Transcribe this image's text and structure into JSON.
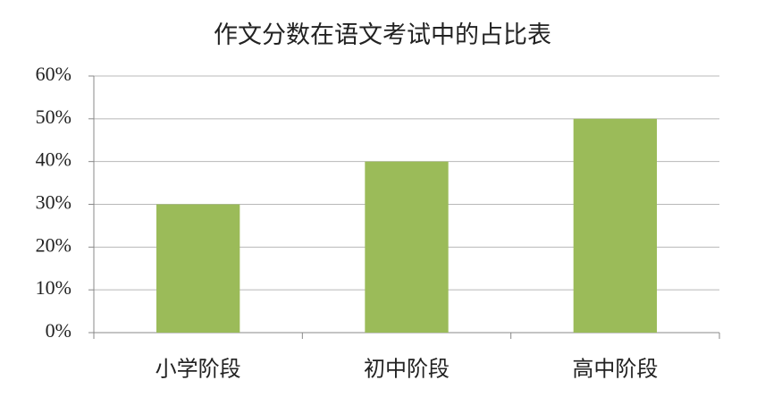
{
  "chart_data": {
    "type": "bar",
    "title": "作文分数在语文考试中的占比表",
    "categories": [
      "小学阶段",
      "初中阶段",
      "高中阶段"
    ],
    "values": [
      30,
      40,
      50
    ],
    "color": "#9bbb59",
    "ylim": [
      0,
      60
    ],
    "yticks": [
      {
        "value": 0,
        "label": "0%"
      },
      {
        "value": 10,
        "label": "10%"
      },
      {
        "value": 20,
        "label": "20%"
      },
      {
        "value": 30,
        "label": "30%"
      },
      {
        "value": 40,
        "label": "40%"
      },
      {
        "value": 50,
        "label": "50%"
      },
      {
        "value": 60,
        "label": "60%"
      }
    ],
    "grid": true
  }
}
